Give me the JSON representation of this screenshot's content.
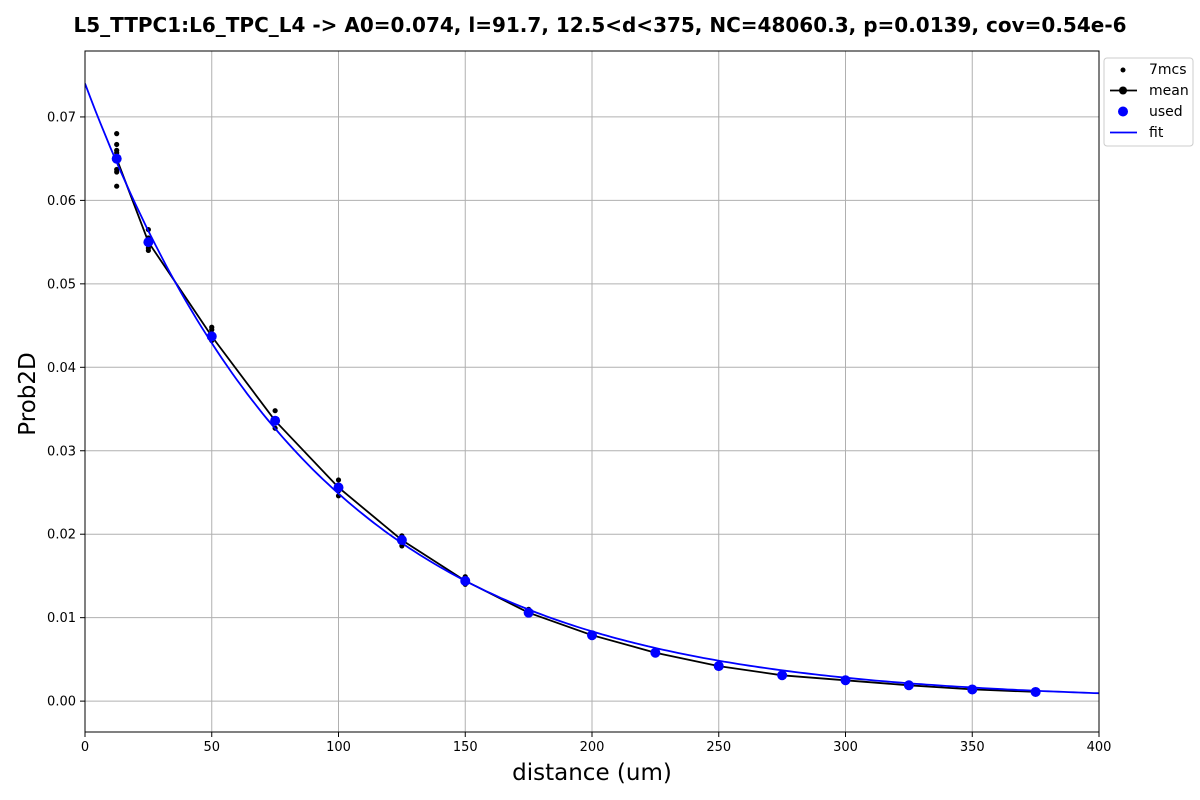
{
  "chart_data": {
    "type": "scatter",
    "title": "L5_TTPC1:L6_TPC_L4 -> A0=0.074, l=91.7, 12.5<d<375, NC=48060.3, p=0.0139, cov=0.54e-6",
    "xlabel": "distance (um)",
    "ylabel": "Prob2D",
    "xlim": [
      0,
      400
    ],
    "ylim": [
      -0.0037,
      0.0779
    ],
    "xticks": [
      0,
      50,
      100,
      150,
      200,
      250,
      300,
      350,
      400
    ],
    "yticks": [
      0.0,
      0.01,
      0.02,
      0.03,
      0.04,
      0.05,
      0.06,
      0.07
    ],
    "ytick_labels": [
      "0.00",
      "0.01",
      "0.02",
      "0.03",
      "0.04",
      "0.05",
      "0.06",
      "0.07"
    ],
    "grid": true,
    "legend_position": "upper-right-outside",
    "colors": {
      "raw": "#000000",
      "mean": "#000000",
      "used": "#0000ff",
      "fit": "#0000ff"
    },
    "fit_params": {
      "A0": 0.074,
      "lambda": 91.7
    },
    "series": [
      {
        "name": "7mcs",
        "style": "small-dots",
        "points": [
          [
            12.5,
            0.068
          ],
          [
            12.5,
            0.0667
          ],
          [
            12.5,
            0.066
          ],
          [
            12.5,
            0.0657
          ],
          [
            12.5,
            0.0637
          ],
          [
            12.5,
            0.0634
          ],
          [
            12.5,
            0.0617
          ],
          [
            25,
            0.0565
          ],
          [
            25,
            0.0555
          ],
          [
            25,
            0.0549
          ],
          [
            25,
            0.0543
          ],
          [
            25,
            0.054
          ],
          [
            50,
            0.0448
          ],
          [
            50,
            0.0445
          ],
          [
            50,
            0.044
          ],
          [
            50,
            0.0436
          ],
          [
            50,
            0.0432
          ],
          [
            75,
            0.0348
          ],
          [
            75,
            0.0338
          ],
          [
            75,
            0.0334
          ],
          [
            75,
            0.0327
          ],
          [
            100,
            0.0265
          ],
          [
            100,
            0.0258
          ],
          [
            100,
            0.0252
          ],
          [
            100,
            0.0246
          ],
          [
            125,
            0.0198
          ],
          [
            125,
            0.0195
          ],
          [
            125,
            0.0191
          ],
          [
            125,
            0.0186
          ],
          [
            150,
            0.0149
          ],
          [
            150,
            0.0146
          ],
          [
            150,
            0.0143
          ],
          [
            150,
            0.014
          ],
          [
            175,
            0.011
          ],
          [
            175,
            0.0107
          ],
          [
            175,
            0.0104
          ],
          [
            200,
            0.0081
          ],
          [
            200,
            0.0079
          ],
          [
            200,
            0.0077
          ],
          [
            225,
            0.006
          ],
          [
            225,
            0.0058
          ],
          [
            225,
            0.0056
          ],
          [
            250,
            0.0044
          ],
          [
            250,
            0.0042
          ],
          [
            250,
            0.004
          ],
          [
            275,
            0.0033
          ],
          [
            275,
            0.0031
          ],
          [
            275,
            0.0029
          ],
          [
            300,
            0.0027
          ],
          [
            300,
            0.0025
          ],
          [
            300,
            0.0023
          ],
          [
            325,
            0.0021
          ],
          [
            325,
            0.0019
          ],
          [
            350,
            0.0016
          ],
          [
            350,
            0.0014
          ],
          [
            375,
            0.0013
          ],
          [
            375,
            0.0011
          ]
        ]
      },
      {
        "name": "mean",
        "style": "line-with-markers",
        "x": [
          12.5,
          25,
          50,
          75,
          100,
          125,
          150,
          175,
          200,
          225,
          250,
          275,
          300,
          325,
          350,
          375
        ],
        "y": [
          0.065,
          0.055,
          0.0437,
          0.0336,
          0.0256,
          0.0193,
          0.0144,
          0.0106,
          0.0079,
          0.0058,
          0.0042,
          0.0031,
          0.0025,
          0.0019,
          0.0014,
          0.0011
        ]
      },
      {
        "name": "used",
        "style": "large-dots",
        "x": [
          12.5,
          25,
          50,
          75,
          100,
          125,
          150,
          175,
          200,
          225,
          250,
          275,
          300,
          325,
          350,
          375
        ],
        "y": [
          0.065,
          0.055,
          0.0437,
          0.0336,
          0.0256,
          0.0193,
          0.0144,
          0.0106,
          0.0079,
          0.0058,
          0.0042,
          0.0031,
          0.0025,
          0.0019,
          0.0014,
          0.0011
        ]
      },
      {
        "name": "fit",
        "style": "line"
      }
    ]
  }
}
